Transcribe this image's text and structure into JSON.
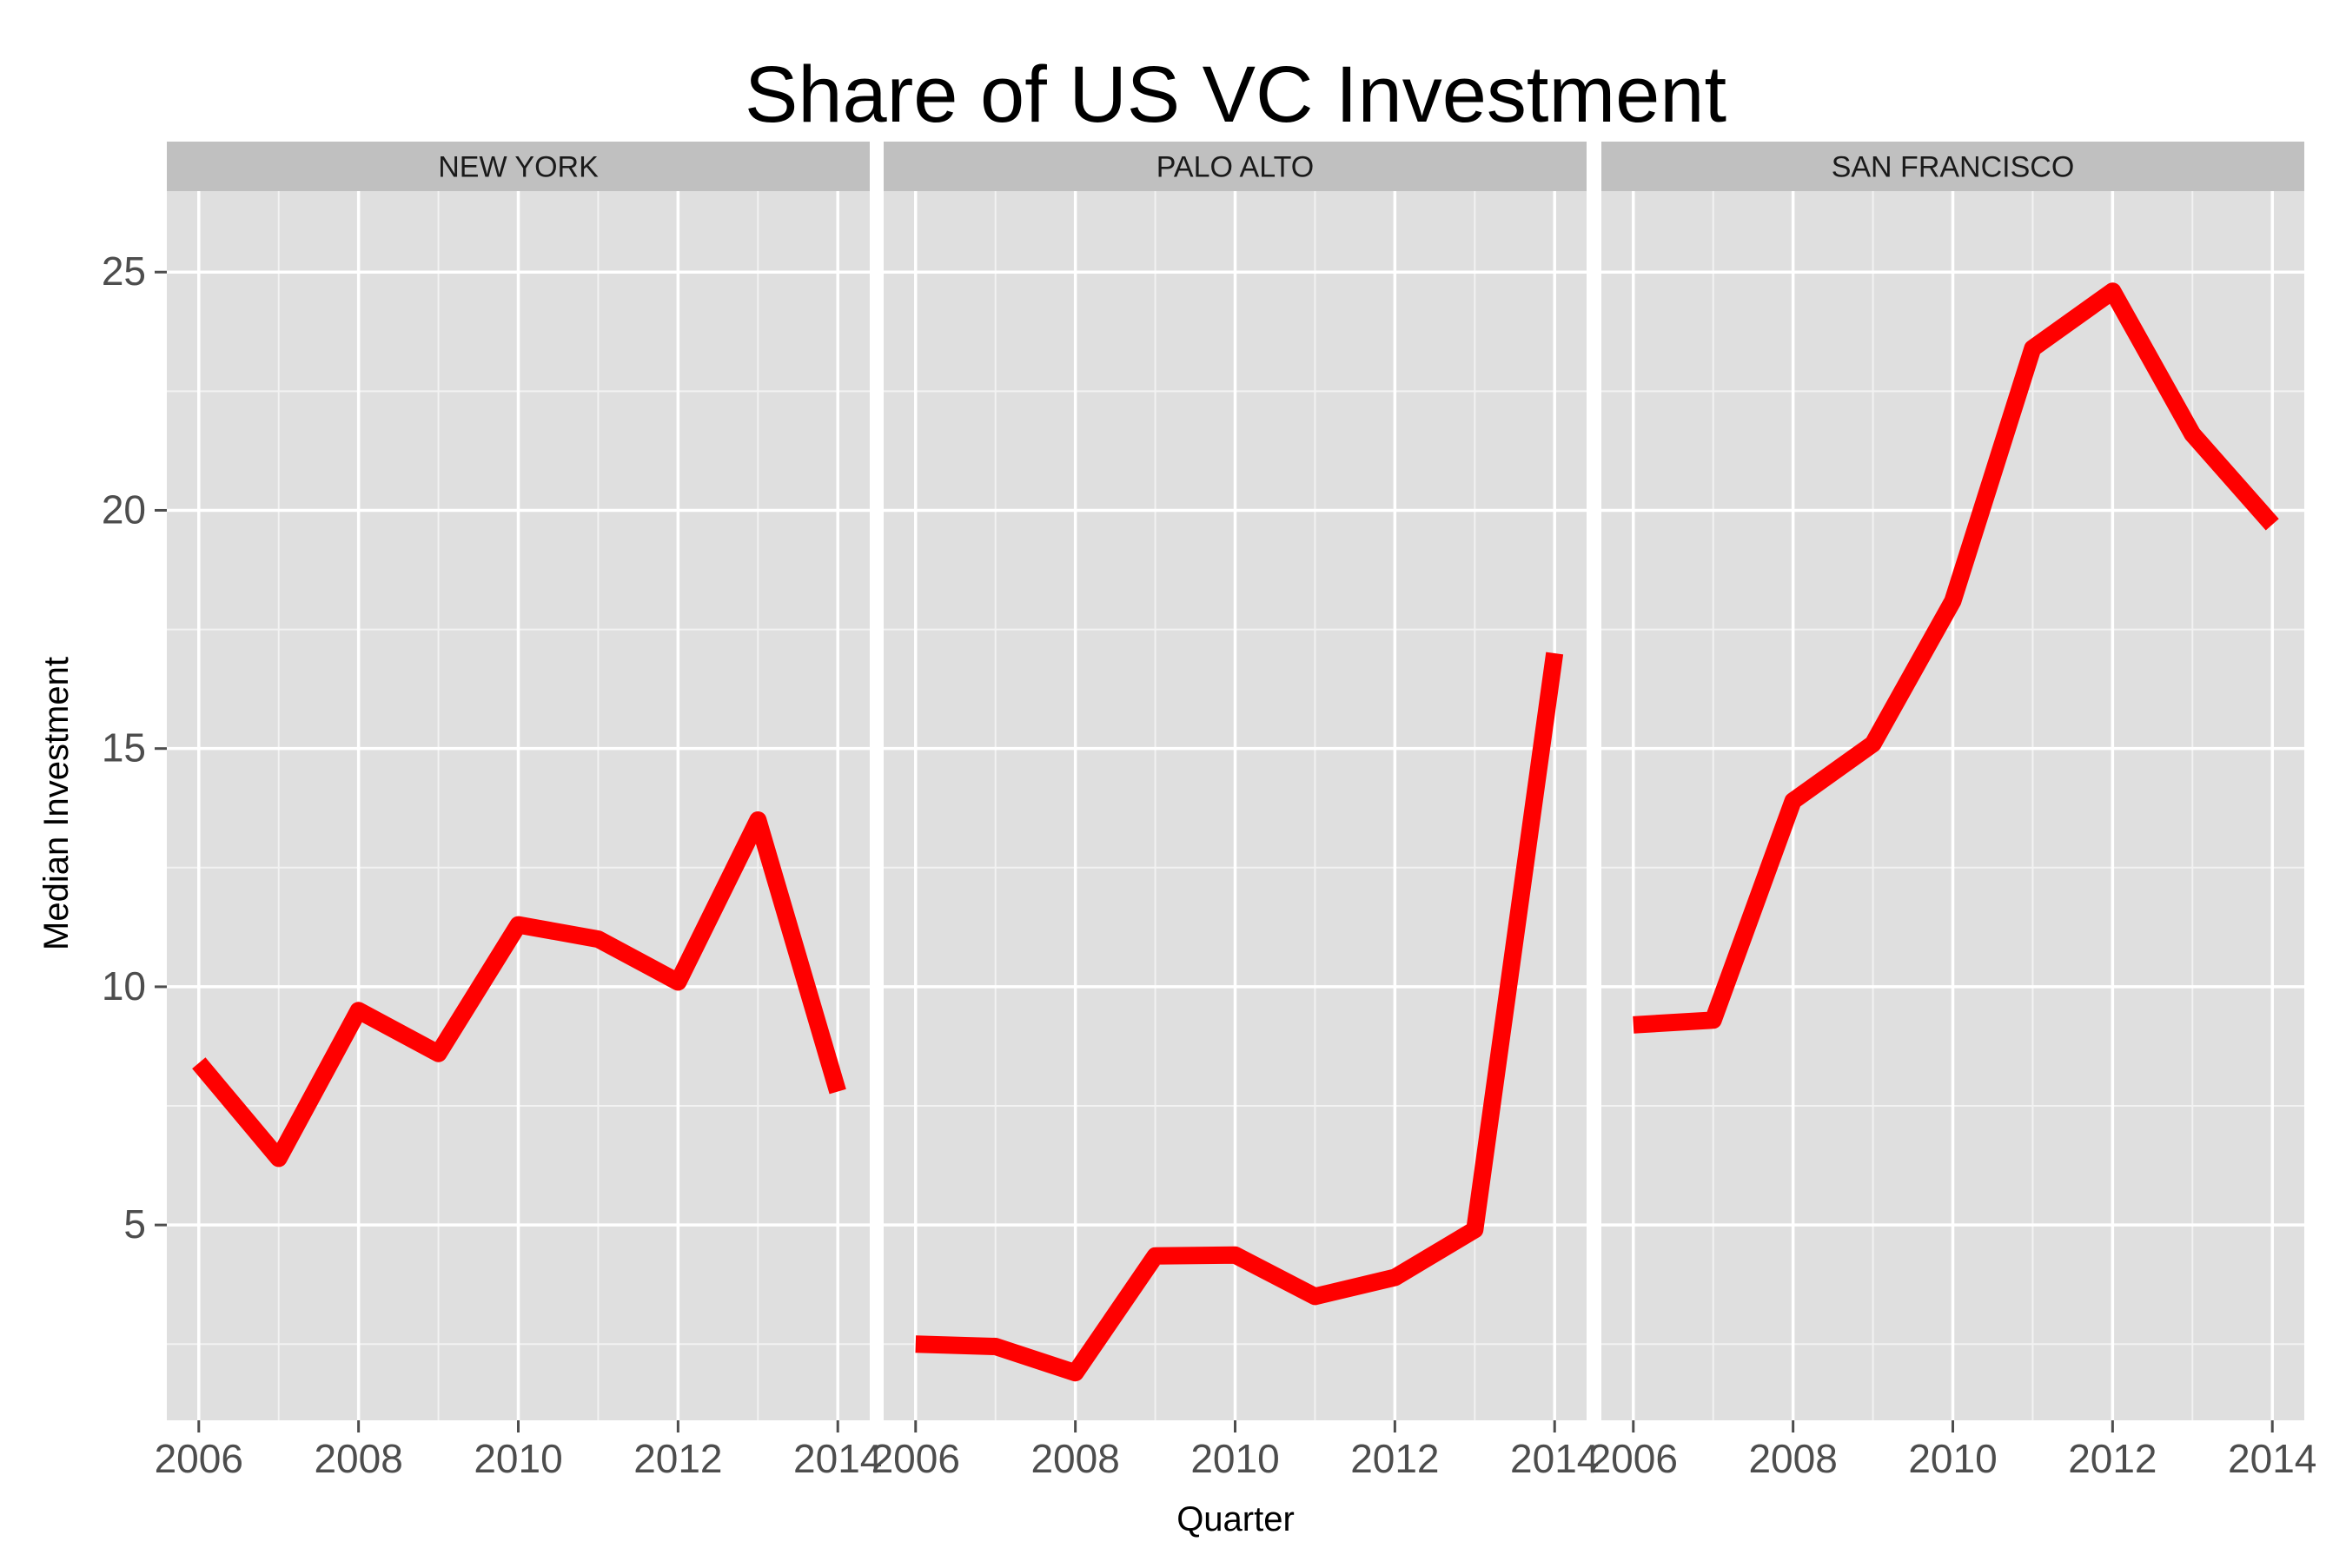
{
  "chart_data": {
    "type": "line",
    "title": "Share of US VC Investment",
    "xlabel": "Quarter",
    "ylabel": "Median Investment",
    "x_ticks": [
      2006,
      2008,
      2010,
      2012,
      2014
    ],
    "x_tick_labels": [
      "2006",
      "2008",
      "2010",
      "2012",
      "2014"
    ],
    "y_ticks": [
      5,
      10,
      15,
      20,
      25
    ],
    "y_tick_labels": [
      "5",
      "10",
      "15",
      "20",
      "25"
    ],
    "xlim": [
      2005.6,
      2014.4
    ],
    "ylim": [
      0.9,
      26.7
    ],
    "grid": true,
    "line_color": "#ff0000",
    "panel_background": "#dfdfdf",
    "strip_background": "#c0c0c0",
    "facets": [
      {
        "label": "NEW YORK",
        "series": [
          {
            "x": [
              2006,
              2007,
              2008,
              2009,
              2010,
              2011,
              2012,
              2013,
              2014
            ],
            "y": [
              8.4,
              6.4,
              9.5,
              8.6,
              11.3,
              11.0,
              10.1,
              13.5,
              7.8
            ]
          }
        ]
      },
      {
        "label": "PALO ALTO",
        "series": [
          {
            "x": [
              2006,
              2007,
              2008,
              2009,
              2010,
              2011,
              2012,
              2013,
              2014
            ],
            "y": [
              2.5,
              2.45,
              1.9,
              4.35,
              4.37,
              3.5,
              3.9,
              4.9,
              17.0
            ]
          }
        ]
      },
      {
        "label": "SAN FRANCISCO",
        "series": [
          {
            "x": [
              2006,
              2007,
              2008,
              2009,
              2010,
              2011,
              2012,
              2013,
              2014
            ],
            "y": [
              9.2,
              9.3,
              13.9,
              15.1,
              18.1,
              23.4,
              24.6,
              21.6,
              19.7
            ]
          }
        ]
      }
    ]
  }
}
